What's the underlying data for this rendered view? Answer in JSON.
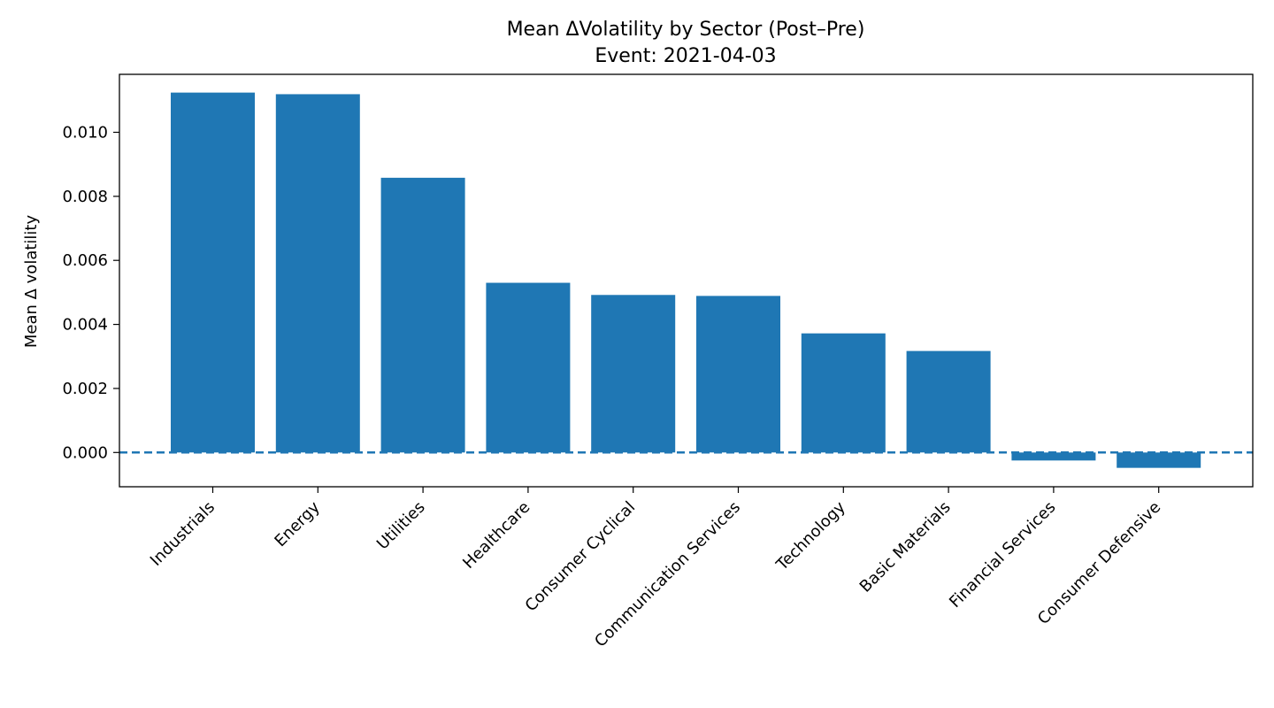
{
  "chart_data": {
    "type": "bar",
    "title": "Mean ΔVolatility by Sector (Post–Pre)",
    "subtitle": "Event: 2021-04-03",
    "xlabel": "",
    "ylabel": "Mean Δ volatility",
    "categories": [
      "Industrials",
      "Energy",
      "Utilities",
      "Healthcare",
      "Consumer Cyclical",
      "Communication Services",
      "Technology",
      "Basic Materials",
      "Financial Services",
      "Consumer Defensive"
    ],
    "values": [
      0.01124,
      0.01119,
      0.00858,
      0.0053,
      0.00492,
      0.00489,
      0.00372,
      0.00317,
      -0.00025,
      -0.00048
    ],
    "ylim": [
      -0.00107,
      0.01181
    ],
    "yticks": [
      0.0,
      0.002,
      0.004,
      0.006,
      0.008,
      0.01
    ],
    "ytick_labels": [
      "0.000",
      "0.002",
      "0.004",
      "0.006",
      "0.008",
      "0.010"
    ],
    "reference_line": {
      "y": 0,
      "style": "dashed"
    },
    "bar_color": "#1f77b4",
    "grid": false,
    "legend": "none"
  }
}
